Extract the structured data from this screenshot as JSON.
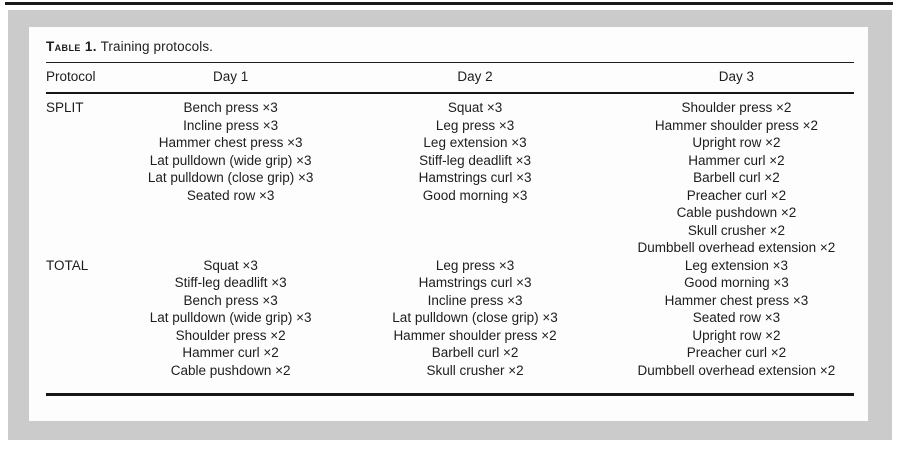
{
  "table": {
    "title_label": "Table 1.",
    "title_text": "Training protocols.",
    "columns": [
      "Protocol",
      "Day 1",
      "Day 2",
      "Day 3"
    ],
    "protocols": [
      {
        "name": "SPLIT",
        "day1": [
          "Bench press ×3",
          "Incline press ×3",
          "Hammer chest press ×3",
          "Lat pulldown (wide grip) ×3",
          "Lat pulldown (close grip) ×3",
          "Seated row ×3"
        ],
        "day2": [
          "Squat ×3",
          "Leg press ×3",
          "Leg extension ×3",
          "Stiff-leg deadlift ×3",
          "Hamstrings curl ×3",
          "Good morning ×3"
        ],
        "day3": [
          "Shoulder press ×2",
          "Hammer shoulder press ×2",
          "Upright row ×2",
          "Hammer curl ×2",
          "Barbell curl ×2",
          "Preacher curl ×2",
          "Cable pushdown ×2",
          "Skull crusher ×2",
          "Dumbbell overhead extension ×2"
        ]
      },
      {
        "name": "TOTAL",
        "day1": [
          "Squat ×3",
          "Stiff-leg deadlift ×3",
          "Bench press ×3",
          "Lat pulldown (wide grip) ×3",
          "Shoulder press ×2",
          "Hammer curl ×2",
          "Cable pushdown ×2"
        ],
        "day2": [
          "Leg press ×3",
          "Hamstrings curl ×3",
          "Incline press ×3",
          "Lat pulldown (close grip) ×3",
          "Hammer shoulder press ×2",
          "Barbell curl ×2",
          "Skull crusher ×2"
        ],
        "day3": [
          "Leg extension ×3",
          "Good morning ×3",
          "Hammer chest press ×3",
          "Seated row ×3",
          "Upright row ×2",
          "Preacher curl ×2",
          "Dumbbell overhead extension ×2"
        ]
      }
    ]
  },
  "colors": {
    "page_background": "#ffffff",
    "panel_background": "#cbcbcb",
    "card_background": "#fdfdfd",
    "text": "#1d1d1d",
    "rule": "#161616"
  }
}
